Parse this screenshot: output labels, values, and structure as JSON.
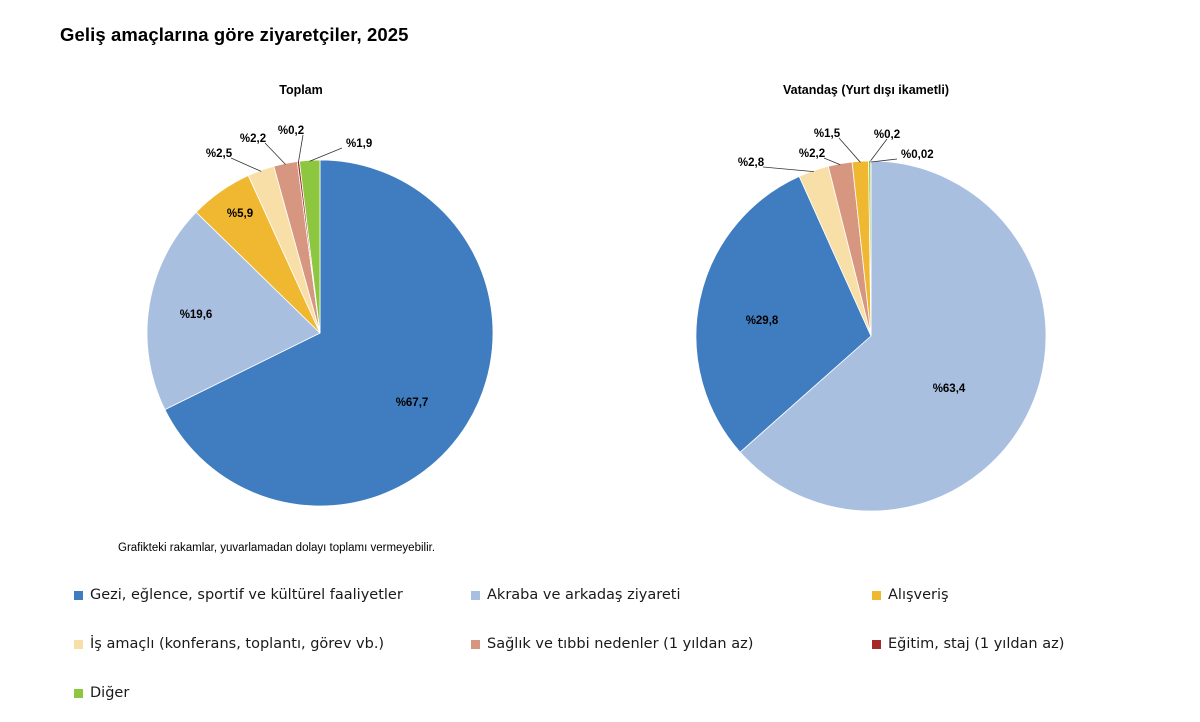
{
  "title": "Geliş amaçlarına göre ziyaretçiler, 2025",
  "note": "Grafikteki rakamlar, yuvarlamadan dolayı toplamı vermeyebilir.",
  "legend": [
    {
      "key": "gezi",
      "label": "Gezi, eğlence, sportif ve kültürel faaliyetler",
      "color": "#3F7DC0"
    },
    {
      "key": "akraba",
      "label": "Akraba ve arkadaş ziyareti",
      "color": "#A8BFE0"
    },
    {
      "key": "alisveris",
      "label": "Alışveriş",
      "color": "#F0B830"
    },
    {
      "key": "is",
      "label": "İş amaçlı (konferans, toplantı, görev vb.)",
      "color": "#F8DFA8"
    },
    {
      "key": "saglik",
      "label": "Sağlık ve tıbbi nedenler (1 yıldan az)",
      "color": "#D69680"
    },
    {
      "key": "egitim",
      "label": "Eğitim, staj (1 yıldan az)",
      "color": "#A42A28"
    },
    {
      "key": "diger",
      "label": "Diğer",
      "color": "#8DC63F"
    }
  ],
  "chart_data": [
    {
      "type": "pie",
      "title": "Toplam",
      "categories": [
        "Gezi, eğlence, sportif ve kültürel faaliyetler",
        "Akraba ve arkadaş ziyareti",
        "Alışveriş",
        "İş amaçlı (konferans, toplantı, görev vb.)",
        "Sağlık ve tıbbi nedenler (1 yıldan az)",
        "Eğitim, staj (1 yıldan az)",
        "Diğer"
      ],
      "values": [
        67.7,
        19.6,
        5.9,
        2.5,
        2.2,
        0.2,
        1.9
      ],
      "labels": [
        "%67,7",
        "%19,6",
        "%5,9",
        "%2,5",
        "%2,2",
        "%0,2",
        "%1,9"
      ]
    },
    {
      "type": "pie",
      "title": "Vatandaş (Yurt dışı ikametli)",
      "categories": [
        "Akraba ve arkadaş ziyareti",
        "Gezi, eğlence, sportif ve kültürel faaliyetler",
        "İş amaçlı (konferans, toplantı, görev vb.)",
        "Sağlık ve tıbbi nedenler (1 yıldan az)",
        "Alışveriş",
        "Diğer",
        "Eğitim, staj (1 yıldan az)"
      ],
      "values": [
        63.4,
        29.8,
        2.8,
        2.2,
        1.5,
        0.2,
        0.02
      ],
      "labels": [
        "%63,4",
        "%29,8",
        "%2,8",
        "%2,2",
        "%1,5",
        "%0,2",
        "%0,02"
      ]
    }
  ]
}
